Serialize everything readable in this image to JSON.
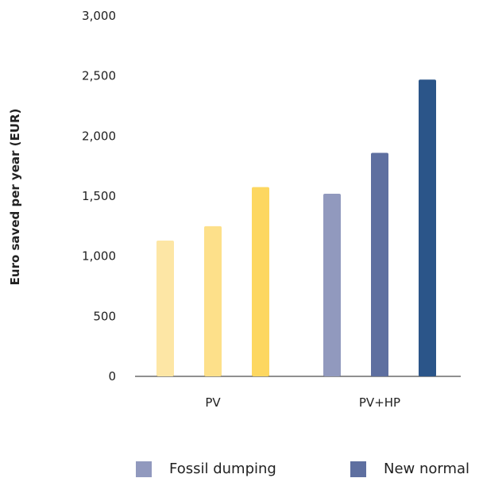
{
  "chart_data": {
    "type": "bar",
    "categories": [
      "PV",
      "PV+HP"
    ],
    "series": [
      {
        "name": "Fossil dumping",
        "values": [
          1130,
          1520
        ],
        "colors": [
          "#fde6a5",
          "#9199be"
        ]
      },
      {
        "name": "New normal",
        "values": [
          1250,
          1860
        ],
        "colors": [
          "#fde08a",
          "#5e6fa0"
        ]
      },
      {
        "name": "",
        "values": [
          1575,
          2470
        ],
        "colors": [
          "#fdd760",
          "#2b5589"
        ]
      }
    ],
    "ylabel": "Euro saved per year (EUR)",
    "xlabel": "",
    "ylim": [
      0,
      3000
    ],
    "yticks": [
      0,
      500,
      1000,
      1500,
      2000,
      2500,
      3000
    ],
    "ytick_labels": [
      "0",
      "500",
      "1,000",
      "1,500",
      "2,000",
      "2,500",
      "3,000"
    ],
    "grid": false,
    "legend_position": "bottom"
  },
  "legend": {
    "items": [
      {
        "label": "Fossil dumping",
        "color": "#9199be"
      },
      {
        "label": "New normal",
        "color": "#5e6fa0"
      }
    ]
  }
}
